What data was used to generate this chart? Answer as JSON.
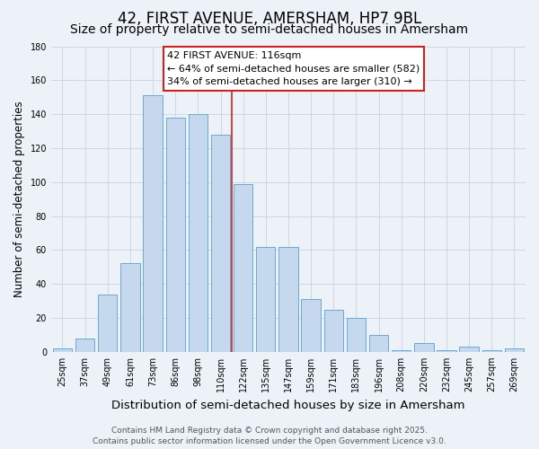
{
  "title": "42, FIRST AVENUE, AMERSHAM, HP7 9BL",
  "subtitle": "Size of property relative to semi-detached houses in Amersham",
  "xlabel": "Distribution of semi-detached houses by size in Amersham",
  "ylabel": "Number of semi-detached properties",
  "categories": [
    "25sqm",
    "37sqm",
    "49sqm",
    "61sqm",
    "73sqm",
    "86sqm",
    "98sqm",
    "110sqm",
    "122sqm",
    "135sqm",
    "147sqm",
    "159sqm",
    "171sqm",
    "183sqm",
    "196sqm",
    "208sqm",
    "220sqm",
    "232sqm",
    "245sqm",
    "257sqm",
    "269sqm"
  ],
  "values": [
    2,
    8,
    34,
    52,
    151,
    138,
    140,
    128,
    99,
    62,
    62,
    31,
    25,
    20,
    10,
    1,
    5,
    1,
    3,
    1,
    2
  ],
  "bar_color": "#c5d8ed",
  "bar_edge_color": "#6aaad4",
  "grid_color": "#c8d4e0",
  "background_color": "#edf2f8",
  "annotation_text_line1": "42 FIRST AVENUE: 116sqm",
  "annotation_text_line2": "← 64% of semi-detached houses are smaller (582)",
  "annotation_text_line3": "34% of semi-detached houses are larger (310) →",
  "vline_color": "#cc2222",
  "vline_x": 7.5,
  "ylim": [
    0,
    180
  ],
  "yticks": [
    0,
    20,
    40,
    60,
    80,
    100,
    120,
    140,
    160,
    180
  ],
  "footer_line1": "Contains HM Land Registry data © Crown copyright and database right 2025.",
  "footer_line2": "Contains public sector information licensed under the Open Government Licence v3.0.",
  "title_fontsize": 12,
  "subtitle_fontsize": 10,
  "xlabel_fontsize": 9.5,
  "ylabel_fontsize": 8.5,
  "tick_fontsize": 7,
  "annotation_fontsize": 8,
  "footer_fontsize": 6.5
}
